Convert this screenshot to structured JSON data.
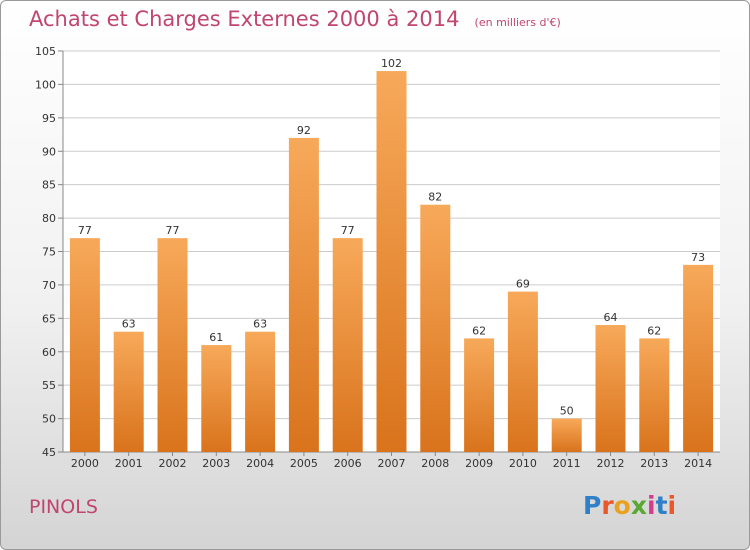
{
  "title": "Achats et Charges Externes 2000 à 2014",
  "subtitle": "(en milliers d'€)",
  "commune": "PINOLS",
  "logo_text": "Proxiti",
  "colors": {
    "title": "#c0456f",
    "bar_light": "#f7a95a",
    "bar_dark": "#d9731c",
    "grid": "#cccccc"
  },
  "chart_data": {
    "type": "bar",
    "title": "Achats et Charges Externes 2000 à 2014",
    "subtitle": "(en milliers d'€)",
    "xlabel": "",
    "ylabel": "",
    "categories": [
      "2000",
      "2001",
      "2002",
      "2003",
      "2004",
      "2005",
      "2006",
      "2007",
      "2008",
      "2009",
      "2010",
      "2011",
      "2012",
      "2013",
      "2014"
    ],
    "values": [
      77,
      63,
      77,
      61,
      63,
      92,
      77,
      102,
      82,
      62,
      69,
      50,
      64,
      62,
      73
    ],
    "ylim": [
      45,
      105
    ],
    "yticks": [
      45,
      50,
      55,
      60,
      65,
      70,
      75,
      80,
      85,
      90,
      95,
      100,
      105
    ],
    "grid": true,
    "data_labels": true
  }
}
